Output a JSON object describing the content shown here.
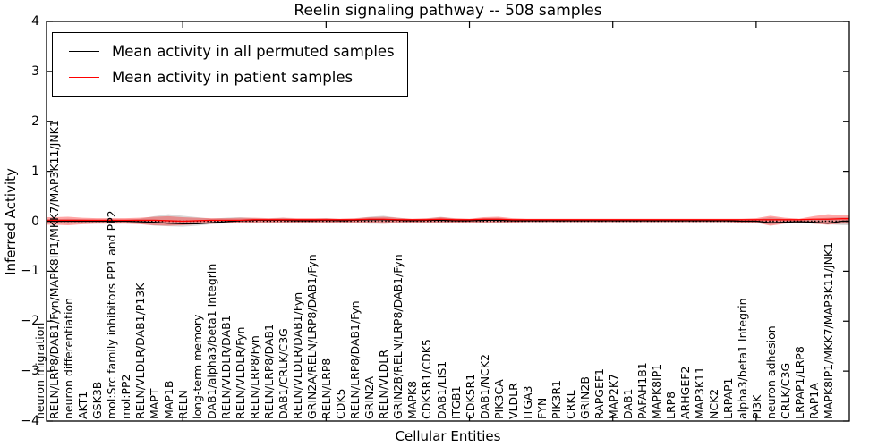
{
  "figure": {
    "title": "Reelin signaling pathway -- 508 samples",
    "ylabel": "Inferred Activity",
    "xlabel": "Cellular Entities"
  },
  "legend": {
    "items": [
      {
        "label": "Mean activity in all permuted samples",
        "color": "#000000"
      },
      {
        "label": "Mean activity in patient samples",
        "color": "#ff0000"
      }
    ]
  },
  "chart_data": {
    "type": "line",
    "title": "Reelin signaling pathway -- 508 samples",
    "xlabel": "Cellular Entities",
    "ylabel": "Inferred Activity",
    "ylim": [
      -4,
      4
    ],
    "yticks": [
      4,
      3,
      2,
      1,
      0,
      -1,
      -2,
      -3,
      -4
    ],
    "zero_line": true,
    "grid": false,
    "legend_position": "upper left",
    "categories": [
      "neuron migration",
      "RELN/LRP8/DAB1/Fyn/MAPK8IP1/MKK7/MAP3K11/JNK1",
      "neuron differentiation",
      "AKT1",
      "GSK3B",
      "mol:Src family inhibitors PP1 and PP2",
      "mol:PP2",
      "RELN/VLDLR/DAB1/P13K",
      "MAPT",
      "MAP1B",
      "RELN",
      "long-term memory",
      "DAB1/alpha3/beta1 Integrin",
      "RELN/VLDLR/DAB1",
      "RELN/VLDLR/Fyn",
      "RELN/LRP8/Fyn",
      "RELN/LRP8/DAB1",
      "DAB1/CRLK/C3G",
      "RELN/VLDLR/DAB1/Fyn",
      "GRIN2A/RELN/LRP8/DAB1/Fyn",
      "RELN/LRP8",
      "CDK5",
      "RELN/LRP8/DAB1/Fyn",
      "GRIN2A",
      "RELN/VLDLR",
      "GRIN2B/RELN/LRP8/DAB1/Fyn",
      "MAPK8",
      "CDK5R1/CDK5",
      "DAB1/LIS1",
      "ITGB1",
      "CDK5R1",
      "DAB1/NCK2",
      "PIK3CA",
      "VLDLR",
      "ITGA3",
      "FYN",
      "PIK3R1",
      "CRKL",
      "GRIN2B",
      "RAPGEF1",
      "MAP2K7",
      "DAB1",
      "PAFAH1B1",
      "MAPK8IP1",
      "LRP8",
      "ARHGEF2",
      "MAP3K11",
      "NCK2",
      "LRPAP1",
      "alpha3/beta1 Integrin",
      "PI3K",
      "neuron adhesion",
      "CRLK/C3G",
      "LRPAP1/LRP8",
      "RAP1A",
      "MAPK8IP1/MKK7/MAP3K11/JNK1"
    ],
    "series": [
      {
        "name": "Mean activity in all permuted samples",
        "color": "#000000",
        "band_color": "rgba(0,0,0,0.15)",
        "values": [
          0.0,
          0.0,
          0.0,
          0.0,
          0.0,
          0.0,
          -0.01,
          -0.02,
          -0.04,
          -0.05,
          -0.05,
          -0.03,
          -0.01,
          0.01,
          0.02,
          0.02,
          0.02,
          0.01,
          0.01,
          0.02,
          0.01,
          0.02,
          0.03,
          0.03,
          0.02,
          0.01,
          0.02,
          0.02,
          0.01,
          0.01,
          0.02,
          0.02,
          0.01,
          0.01,
          0.01,
          0.01,
          0.01,
          0.01,
          0.01,
          0.01,
          0.01,
          0.01,
          0.01,
          0.01,
          0.01,
          0.01,
          0.01,
          0.01,
          0.0,
          0.0,
          -0.03,
          -0.02,
          -0.01,
          -0.02,
          -0.04,
          0.0
        ],
        "band_upper": [
          0.04,
          0.05,
          0.04,
          0.03,
          0.03,
          0.03,
          0.05,
          0.1,
          0.14,
          0.11,
          0.08,
          0.05,
          0.07,
          0.08,
          0.06,
          0.05,
          0.07,
          0.04,
          0.04,
          0.06,
          0.04,
          0.05,
          0.09,
          0.11,
          0.07,
          0.04,
          0.05,
          0.09,
          0.05,
          0.04,
          0.06,
          0.07,
          0.04,
          0.03,
          0.03,
          0.03,
          0.03,
          0.03,
          0.03,
          0.03,
          0.03,
          0.03,
          0.03,
          0.03,
          0.03,
          0.03,
          0.03,
          0.03,
          0.03,
          0.04,
          0.08,
          0.05,
          0.04,
          0.05,
          0.07,
          0.08
        ],
        "band_lower": [
          -0.04,
          -0.05,
          -0.04,
          -0.03,
          -0.03,
          -0.03,
          -0.05,
          -0.09,
          -0.1,
          -0.11,
          -0.09,
          -0.06,
          -0.04,
          -0.04,
          -0.04,
          -0.03,
          -0.04,
          -0.03,
          -0.03,
          -0.03,
          -0.03,
          -0.03,
          -0.05,
          -0.05,
          -0.04,
          -0.03,
          -0.03,
          -0.04,
          -0.03,
          -0.02,
          -0.03,
          -0.04,
          -0.02,
          -0.02,
          -0.02,
          -0.02,
          -0.02,
          -0.02,
          -0.02,
          -0.02,
          -0.02,
          -0.02,
          -0.02,
          -0.02,
          -0.02,
          -0.02,
          -0.02,
          -0.02,
          -0.03,
          -0.03,
          -0.07,
          -0.04,
          -0.03,
          -0.05,
          -0.06,
          -0.08
        ]
      },
      {
        "name": "Mean activity in patient samples",
        "color": "#ff0000",
        "band_color": "rgba(255,0,0,0.35)",
        "values": [
          0.02,
          0.02,
          0.02,
          0.02,
          0.02,
          0.02,
          0.02,
          0.02,
          0.01,
          0.0,
          0.01,
          0.02,
          0.02,
          0.02,
          0.03,
          0.03,
          0.03,
          0.03,
          0.03,
          0.03,
          0.03,
          0.03,
          0.04,
          0.04,
          0.03,
          0.03,
          0.03,
          0.04,
          0.03,
          0.03,
          0.04,
          0.04,
          0.03,
          0.03,
          0.03,
          0.03,
          0.03,
          0.03,
          0.03,
          0.03,
          0.03,
          0.03,
          0.03,
          0.03,
          0.03,
          0.03,
          0.03,
          0.03,
          0.03,
          0.03,
          0.03,
          0.03,
          0.03,
          0.04,
          0.04,
          0.05
        ],
        "band_upper": [
          0.08,
          0.09,
          0.07,
          0.06,
          0.06,
          0.06,
          0.07,
          0.09,
          0.1,
          0.08,
          0.07,
          0.06,
          0.06,
          0.07,
          0.07,
          0.06,
          0.07,
          0.06,
          0.06,
          0.06,
          0.05,
          0.06,
          0.08,
          0.09,
          0.07,
          0.05,
          0.06,
          0.08,
          0.06,
          0.05,
          0.08,
          0.09,
          0.06,
          0.05,
          0.05,
          0.05,
          0.05,
          0.05,
          0.05,
          0.05,
          0.05,
          0.05,
          0.05,
          0.05,
          0.05,
          0.05,
          0.05,
          0.05,
          0.05,
          0.06,
          0.11,
          0.07,
          0.05,
          0.1,
          0.14,
          0.12
        ],
        "band_lower": [
          -0.07,
          -0.08,
          -0.06,
          -0.05,
          -0.05,
          -0.05,
          -0.06,
          -0.08,
          -0.09,
          -0.08,
          -0.06,
          -0.05,
          -0.04,
          -0.04,
          -0.04,
          -0.04,
          -0.04,
          -0.04,
          -0.04,
          -0.04,
          -0.03,
          -0.03,
          -0.04,
          -0.05,
          -0.04,
          -0.03,
          -0.03,
          -0.04,
          -0.03,
          -0.03,
          -0.03,
          -0.04,
          -0.03,
          -0.02,
          -0.02,
          -0.02,
          -0.02,
          -0.02,
          -0.02,
          -0.02,
          -0.02,
          -0.02,
          -0.02,
          -0.02,
          -0.02,
          -0.02,
          -0.02,
          -0.02,
          -0.03,
          -0.03,
          -0.09,
          -0.05,
          -0.03,
          -0.05,
          -0.07,
          -0.05
        ]
      }
    ]
  }
}
